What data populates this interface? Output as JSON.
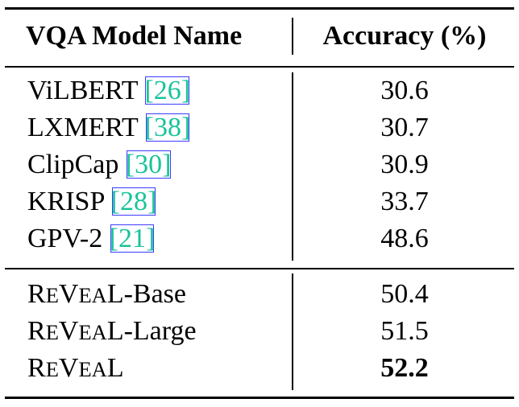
{
  "table": {
    "headers": {
      "model": "VQA Model Name",
      "accuracy": "Accuracy (%)"
    },
    "group1": [
      {
        "name": "ViLBERT ",
        "cite_open": "[",
        "cite": "26",
        "cite_close": "]",
        "accuracy": "30.6"
      },
      {
        "name": "LXMERT ",
        "cite_open": "[",
        "cite": "38",
        "cite_close": "]",
        "accuracy": "30.7"
      },
      {
        "name": "ClipCap ",
        "cite_open": "[",
        "cite": "30",
        "cite_close": "]",
        "accuracy": "30.9"
      },
      {
        "name": "KRISP ",
        "cite_open": "[",
        "cite": "28",
        "cite_close": "]",
        "accuracy": "33.7"
      },
      {
        "name": "GPV-2 ",
        "cite_open": "[",
        "cite": "21",
        "cite_close": "]",
        "accuracy": "48.6"
      }
    ],
    "group2": [
      {
        "sc": [
          "R",
          "E",
          "V",
          "EA",
          "L"
        ],
        "suffix": "-Base",
        "accuracy": "50.4"
      },
      {
        "sc": [
          "R",
          "E",
          "V",
          "EA",
          "L"
        ],
        "suffix": "-Large",
        "accuracy": "51.5"
      },
      {
        "sc": [
          "R",
          "E",
          "V",
          "EA",
          "L"
        ],
        "suffix": "",
        "accuracy": "52.2"
      }
    ]
  }
}
